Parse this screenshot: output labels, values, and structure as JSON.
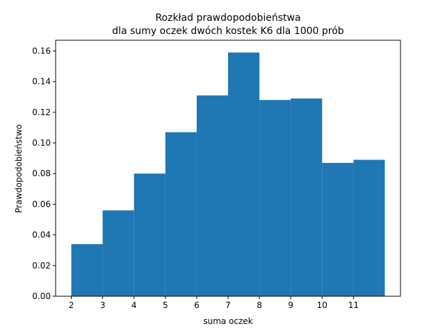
{
  "chart_data": {
    "type": "bar",
    "title_line1": "Rozkład prawdopodobieństwa",
    "title_line2": "dla sumy oczek dwóch kostek K6 dla 1000 prób",
    "xlabel": "suma oczek",
    "ylabel": "Prawdopodobieństwo",
    "bin_edges": [
      2,
      3,
      4,
      5,
      6,
      7,
      8,
      9,
      10,
      11,
      12
    ],
    "values": [
      0.034,
      0.056,
      0.08,
      0.107,
      0.131,
      0.159,
      0.128,
      0.129,
      0.087,
      0.089
    ],
    "xticks": [
      2,
      3,
      4,
      5,
      6,
      7,
      8,
      9,
      10,
      11
    ],
    "yticks": [
      "0.00",
      "0.02",
      "0.04",
      "0.06",
      "0.08",
      "0.10",
      "0.12",
      "0.14",
      "0.16"
    ],
    "xlim": [
      1.5,
      12.5
    ],
    "ylim": [
      0,
      0.167
    ],
    "bar_color": "#1f77b4",
    "grid": false,
    "legend": "none"
  }
}
